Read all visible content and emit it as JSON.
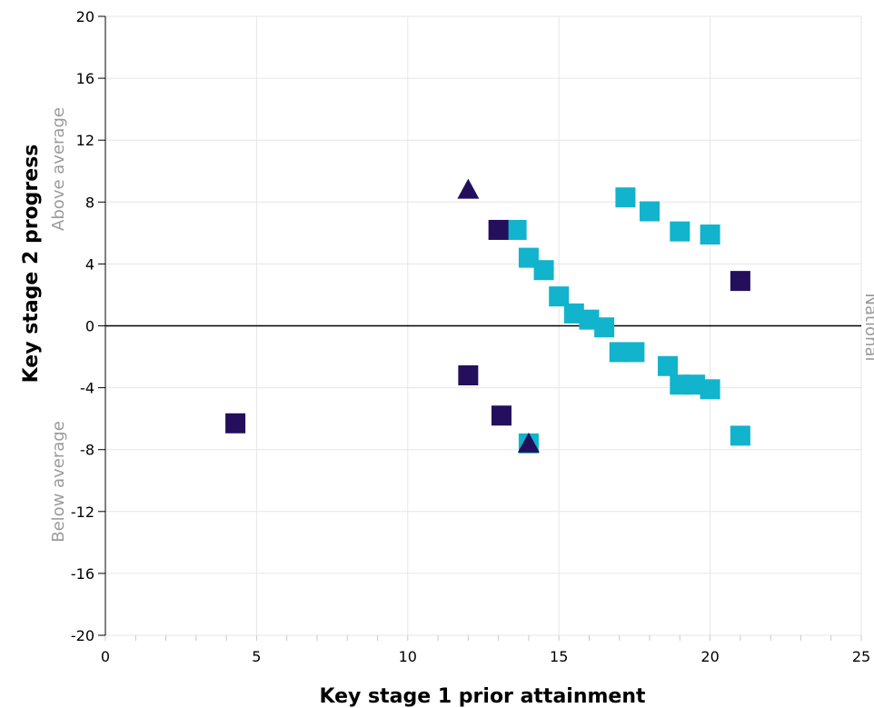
{
  "chart_data": {
    "type": "scatter",
    "xlabel": "Key stage 1 prior attainment",
    "ylabel": "Key stage 2 progress",
    "xlim": [
      0,
      25
    ],
    "ylim": [
      -20,
      20
    ],
    "x_ticks": [
      "0",
      "5",
      "10",
      "15",
      "20",
      "25"
    ],
    "y_ticks": [
      "20",
      "16",
      "12",
      "8",
      "4",
      "0",
      "-4",
      "-8",
      "-12",
      "-16",
      "-20"
    ],
    "grid": true,
    "reference_line_y": 0,
    "region_labels": {
      "above": "Above average",
      "below": "Below average",
      "right": "National"
    },
    "colors": {
      "cyan": "#12b3cc",
      "navy": "#230f5c",
      "grid": "#e6e6e6",
      "region_text": "#9b9b9b"
    },
    "series": [
      {
        "color": "#12b3cc",
        "marker": "square",
        "points": [
          [
            13.6,
            6.2
          ],
          [
            14.0,
            4.4
          ],
          [
            14.5,
            3.6
          ],
          [
            15.0,
            1.9
          ],
          [
            15.5,
            0.8
          ],
          [
            16.0,
            0.4
          ],
          [
            16.5,
            -0.1
          ],
          [
            17.0,
            -1.7
          ],
          [
            17.5,
            -1.7
          ],
          [
            18.6,
            -2.6
          ],
          [
            19.0,
            -3.8
          ],
          [
            19.5,
            -3.8
          ],
          [
            20.0,
            -4.1
          ],
          [
            17.2,
            8.3
          ],
          [
            18.0,
            7.4
          ],
          [
            19.0,
            6.1
          ],
          [
            20.0,
            5.9
          ],
          [
            21.0,
            -7.1
          ],
          [
            14.0,
            -7.6
          ]
        ]
      },
      {
        "color": "#230f5c",
        "marker": "square",
        "points": [
          [
            4.3,
            -6.3
          ],
          [
            12.0,
            -3.2
          ],
          [
            13.0,
            6.2
          ],
          [
            13.1,
            -5.8
          ],
          [
            21.0,
            2.9
          ]
        ]
      },
      {
        "color": "#230f5c",
        "marker": "triangle",
        "points": [
          [
            12.0,
            8.8
          ],
          [
            14.0,
            -7.6
          ]
        ]
      }
    ]
  }
}
